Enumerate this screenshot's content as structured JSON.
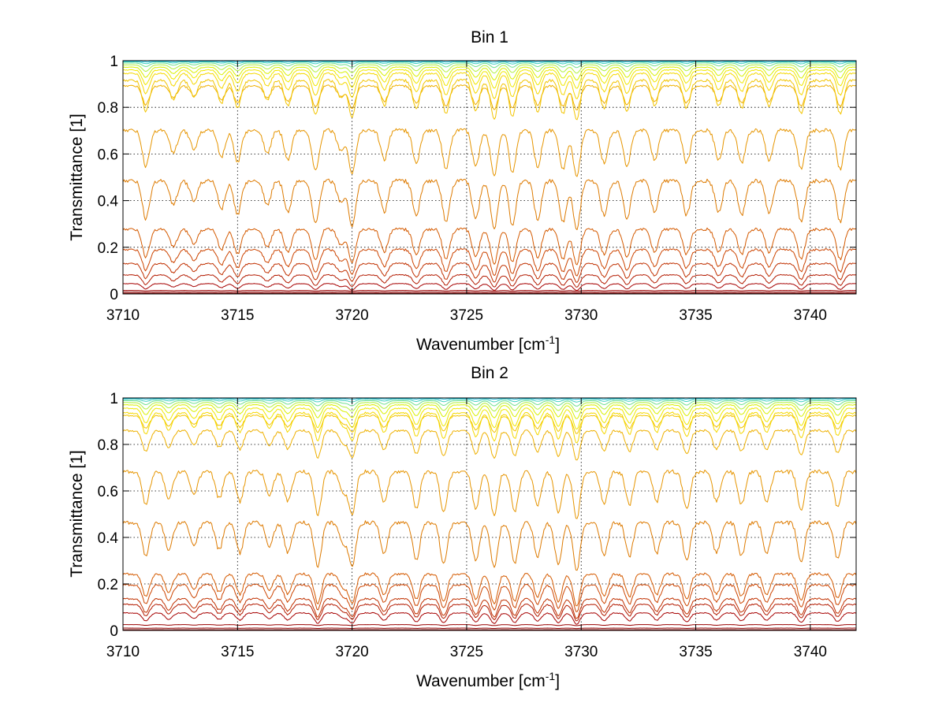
{
  "chart_data": [
    {
      "type": "line",
      "title": "Bin 1",
      "xlabel": "Wavenumber [cm",
      "xlabel_sup": "-1",
      "xlabel_end": "]",
      "ylabel": "Transmittance [1]",
      "xlim": [
        3710,
        3742
      ],
      "ylim": [
        0,
        1
      ],
      "xticks": [
        "3710",
        "3715",
        "3720",
        "3725",
        "3730",
        "3735",
        "3740"
      ],
      "xtick_values": [
        3710,
        3715,
        3720,
        3725,
        3730,
        3735,
        3740
      ],
      "yticks": [
        "0",
        "0.2",
        "0.4",
        "0.6",
        "0.8",
        "1"
      ],
      "ytick_values": [
        0,
        0.2,
        0.4,
        0.6,
        0.8,
        1
      ],
      "grid": true,
      "colormap": "jet (dark red to cyan)",
      "line_families": [
        {
          "baseline": 0.003,
          "color": "#7f0000"
        },
        {
          "baseline": 0.008,
          "color": "#8c0000"
        },
        {
          "baseline": 0.015,
          "color": "#990000"
        },
        {
          "baseline": 0.035,
          "color": "#a60000"
        },
        {
          "baseline": 0.065,
          "color": "#b31a00"
        },
        {
          "baseline": 0.105,
          "color": "#c03000"
        },
        {
          "baseline": 0.155,
          "color": "#cc4400"
        },
        {
          "baseline": 0.23,
          "color": "#d45a00"
        },
        {
          "baseline": 0.42,
          "color": "#dd7a00"
        },
        {
          "baseline": 0.64,
          "color": "#e69500"
        },
        {
          "baseline": 0.86,
          "color": "#eeb000"
        },
        {
          "baseline": 0.915,
          "color": "#f2c400"
        },
        {
          "baseline": 0.945,
          "color": "#f5d800"
        },
        {
          "baseline": 0.96,
          "color": "#f0e800"
        },
        {
          "baseline": 0.972,
          "color": "#d8f000"
        },
        {
          "baseline": 0.982,
          "color": "#b0f040"
        },
        {
          "baseline": 0.99,
          "color": "#70e090"
        },
        {
          "baseline": 0.995,
          "color": "#40d0c0"
        },
        {
          "baseline": 0.998,
          "color": "#20c0e0"
        }
      ],
      "absorption_lines": [
        {
          "x": 3711.0,
          "strength": 0.55
        },
        {
          "x": 3712.2,
          "strength": 0.35
        },
        {
          "x": 3713.1,
          "strength": 0.3
        },
        {
          "x": 3714.3,
          "strength": 0.4
        },
        {
          "x": 3715.0,
          "strength": 0.5
        },
        {
          "x": 3716.3,
          "strength": 0.35
        },
        {
          "x": 3717.2,
          "strength": 0.45
        },
        {
          "x": 3718.4,
          "strength": 0.6
        },
        {
          "x": 3719.5,
          "strength": 0.3
        },
        {
          "x": 3720.0,
          "strength": 0.65
        },
        {
          "x": 3721.4,
          "strength": 0.45
        },
        {
          "x": 3722.8,
          "strength": 0.5
        },
        {
          "x": 3724.1,
          "strength": 0.6
        },
        {
          "x": 3725.4,
          "strength": 0.55
        },
        {
          "x": 3726.2,
          "strength": 0.7
        },
        {
          "x": 3727.0,
          "strength": 0.65
        },
        {
          "x": 3728.1,
          "strength": 0.55
        },
        {
          "x": 3729.2,
          "strength": 0.6
        },
        {
          "x": 3729.8,
          "strength": 0.7
        },
        {
          "x": 3731.0,
          "strength": 0.5
        },
        {
          "x": 3732.0,
          "strength": 0.55
        },
        {
          "x": 3733.2,
          "strength": 0.45
        },
        {
          "x": 3734.6,
          "strength": 0.5
        },
        {
          "x": 3736.0,
          "strength": 0.45
        },
        {
          "x": 3737.0,
          "strength": 0.5
        },
        {
          "x": 3738.2,
          "strength": 0.45
        },
        {
          "x": 3739.6,
          "strength": 0.6
        },
        {
          "x": 3741.3,
          "strength": 0.6
        }
      ]
    },
    {
      "type": "line",
      "title": "Bin 2",
      "xlabel": "Wavenumber [cm",
      "xlabel_sup": "-1",
      "xlabel_end": "]",
      "ylabel": "Transmittance [1]",
      "xlim": [
        3710,
        3742
      ],
      "ylim": [
        0,
        1
      ],
      "xticks": [
        "3710",
        "3715",
        "3720",
        "3725",
        "3730",
        "3735",
        "3740"
      ],
      "xtick_values": [
        3710,
        3715,
        3720,
        3725,
        3730,
        3735,
        3740
      ],
      "yticks": [
        "0",
        "0.2",
        "0.4",
        "0.6",
        "0.8",
        "1"
      ],
      "ytick_values": [
        0,
        0.2,
        0.4,
        0.6,
        0.8,
        1
      ],
      "grid": true,
      "colormap": "jet (dark red to cyan)",
      "line_families": [
        {
          "baseline": 0.003,
          "color": "#7f0000"
        },
        {
          "baseline": 0.01,
          "color": "#8c0000"
        },
        {
          "baseline": 0.025,
          "color": "#990000"
        },
        {
          "baseline": 0.06,
          "color": "#a60000"
        },
        {
          "baseline": 0.09,
          "color": "#b31a00"
        },
        {
          "baseline": 0.11,
          "color": "#c03000"
        },
        {
          "baseline": 0.16,
          "color": "#cc4400"
        },
        {
          "baseline": 0.2,
          "color": "#d45a00"
        },
        {
          "baseline": 0.4,
          "color": "#dd7a00"
        },
        {
          "baseline": 0.62,
          "color": "#e69500"
        },
        {
          "baseline": 0.82,
          "color": "#eeb000"
        },
        {
          "baseline": 0.9,
          "color": "#f2c400"
        },
        {
          "baseline": 0.935,
          "color": "#f5d800"
        },
        {
          "baseline": 0.955,
          "color": "#f0e800"
        },
        {
          "baseline": 0.97,
          "color": "#d8f000"
        },
        {
          "baseline": 0.98,
          "color": "#b0f040"
        },
        {
          "baseline": 0.988,
          "color": "#70e090"
        },
        {
          "baseline": 0.994,
          "color": "#40d0c0"
        },
        {
          "baseline": 0.998,
          "color": "#20c0e0"
        }
      ],
      "absorption_lines": [
        {
          "x": 3711.0,
          "strength": 0.5
        },
        {
          "x": 3712.0,
          "strength": 0.4
        },
        {
          "x": 3713.1,
          "strength": 0.35
        },
        {
          "x": 3714.2,
          "strength": 0.4
        },
        {
          "x": 3715.1,
          "strength": 0.45
        },
        {
          "x": 3716.4,
          "strength": 0.35
        },
        {
          "x": 3717.2,
          "strength": 0.45
        },
        {
          "x": 3718.5,
          "strength": 0.65
        },
        {
          "x": 3719.6,
          "strength": 0.3
        },
        {
          "x": 3720.0,
          "strength": 0.65
        },
        {
          "x": 3721.4,
          "strength": 0.45
        },
        {
          "x": 3722.8,
          "strength": 0.55
        },
        {
          "x": 3724.0,
          "strength": 0.6
        },
        {
          "x": 3725.4,
          "strength": 0.55
        },
        {
          "x": 3726.2,
          "strength": 0.65
        },
        {
          "x": 3727.1,
          "strength": 0.6
        },
        {
          "x": 3728.1,
          "strength": 0.5
        },
        {
          "x": 3729.0,
          "strength": 0.6
        },
        {
          "x": 3729.8,
          "strength": 0.7
        },
        {
          "x": 3731.0,
          "strength": 0.5
        },
        {
          "x": 3732.1,
          "strength": 0.5
        },
        {
          "x": 3733.3,
          "strength": 0.45
        },
        {
          "x": 3734.6,
          "strength": 0.55
        },
        {
          "x": 3735.9,
          "strength": 0.45
        },
        {
          "x": 3737.0,
          "strength": 0.5
        },
        {
          "x": 3738.1,
          "strength": 0.45
        },
        {
          "x": 3739.6,
          "strength": 0.6
        },
        {
          "x": 3741.2,
          "strength": 0.55
        }
      ]
    }
  ]
}
